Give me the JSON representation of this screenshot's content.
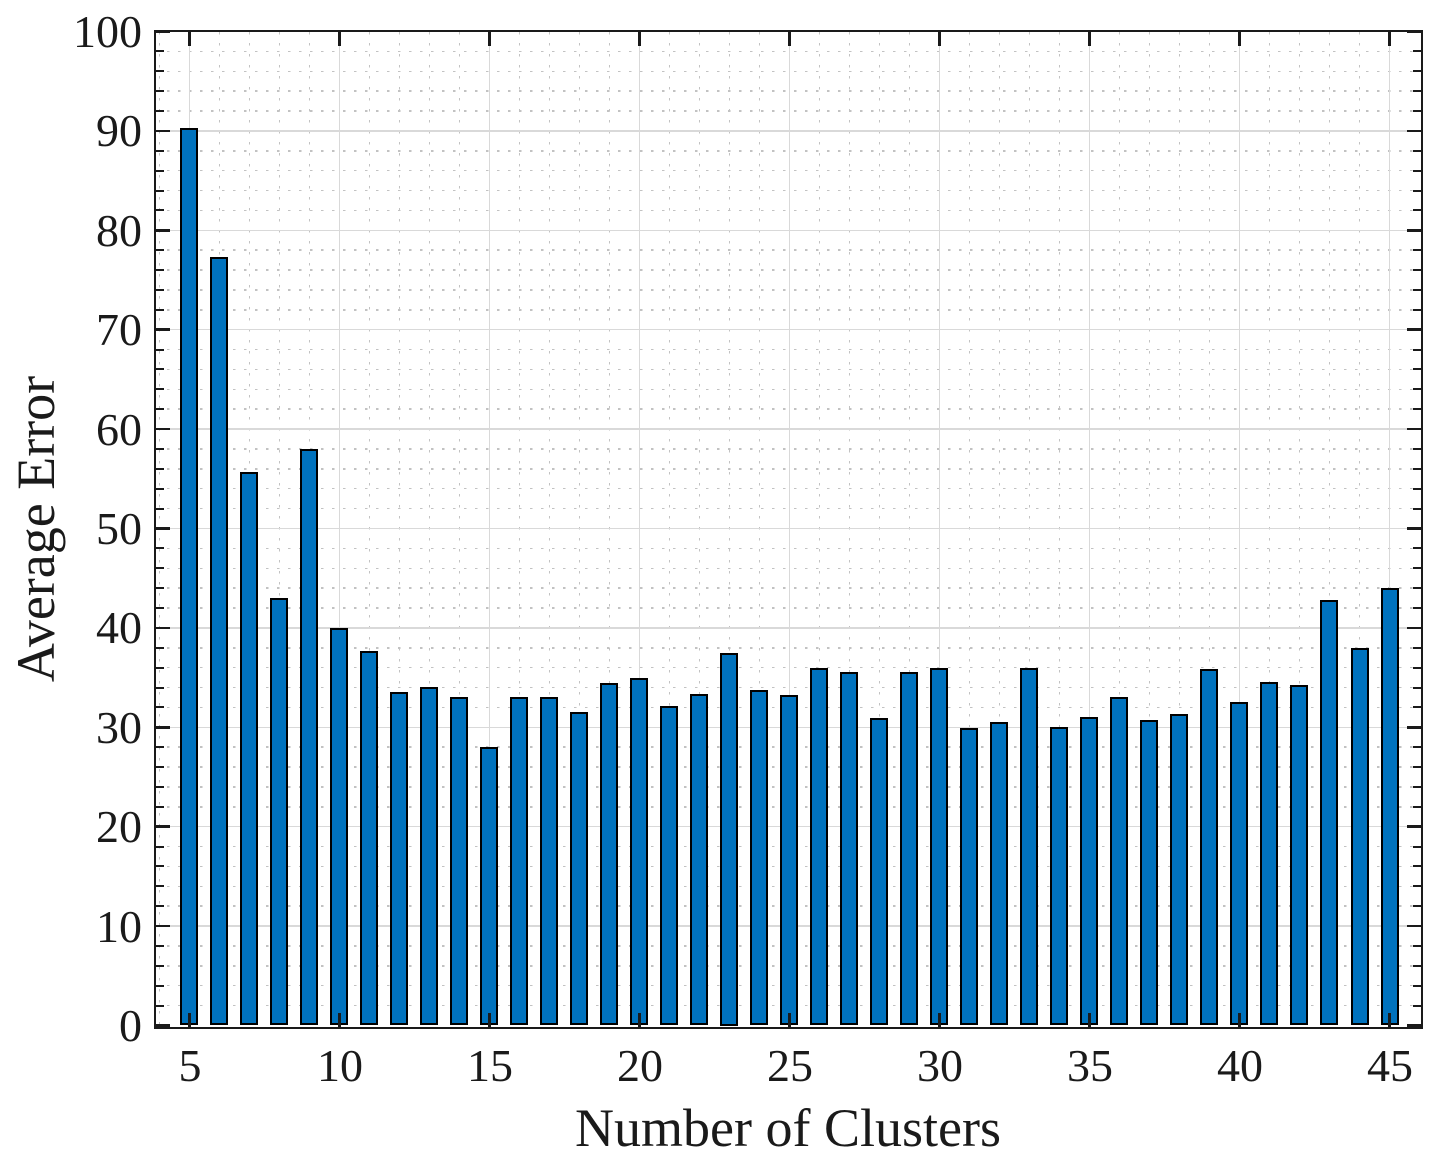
{
  "chart_data": {
    "type": "bar",
    "title": "",
    "xlabel": "Number of Clusters",
    "ylabel": "Average Error",
    "x": [
      5,
      6,
      7,
      8,
      9,
      10,
      11,
      12,
      13,
      14,
      15,
      16,
      17,
      18,
      19,
      20,
      21,
      22,
      23,
      24,
      25,
      26,
      27,
      28,
      29,
      30,
      31,
      32,
      33,
      34,
      35,
      36,
      37,
      38,
      39,
      40,
      41,
      42,
      43,
      44,
      45
    ],
    "values": [
      90.3,
      77.3,
      55.7,
      43.0,
      58.0,
      40.0,
      37.7,
      33.6,
      34.1,
      33.0,
      28.0,
      33.0,
      33.0,
      31.5,
      34.5,
      35.0,
      32.1,
      33.4,
      37.5,
      33.8,
      33.2,
      36.0,
      35.6,
      30.9,
      35.6,
      36.0,
      29.9,
      30.5,
      36.0,
      30.0,
      31.0,
      33.0,
      30.7,
      31.3,
      35.9,
      32.5,
      34.6,
      34.3,
      42.8,
      38.0,
      44.0
    ],
    "xlim": [
      3.8667,
      46.0
    ],
    "ylim": [
      0,
      100
    ],
    "xticks": [
      5,
      10,
      15,
      20,
      25,
      30,
      35,
      40,
      45
    ],
    "yticks": [
      0,
      10,
      20,
      30,
      40,
      50,
      60,
      70,
      80,
      90,
      100
    ],
    "x_minor_step": 1,
    "y_minor_step": 2,
    "grid": "major and minor, box on, ticks inward on all sides",
    "legend": "none",
    "bar_width_units": 0.6,
    "colors": {
      "bar_fill": "#0072BD",
      "bar_edge": "#000000",
      "axis": "#1a1a1a",
      "grid_major": "#d9d9d9",
      "grid_minor": "#c2c2c2",
      "background": "#ffffff"
    }
  }
}
